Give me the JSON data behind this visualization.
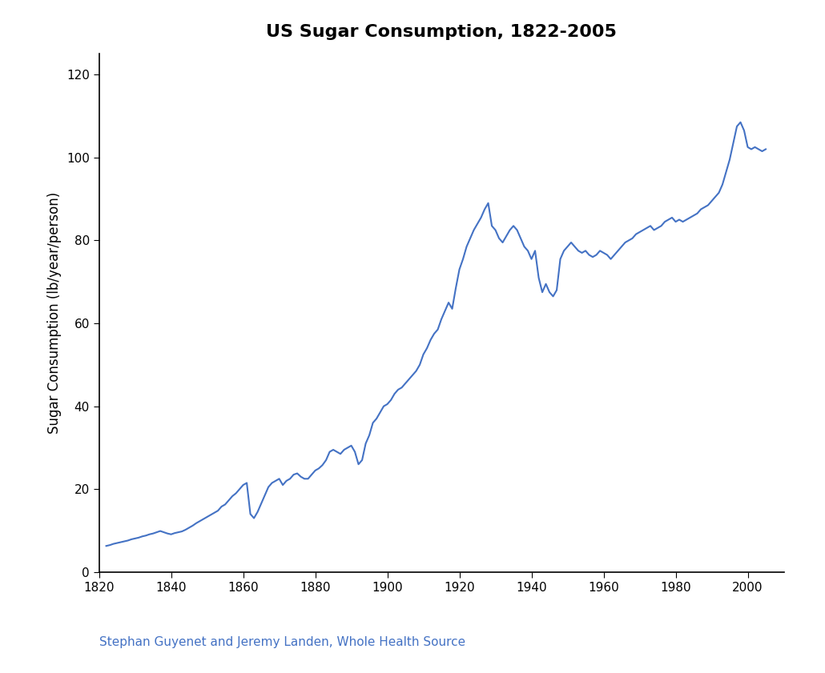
{
  "title": "US Sugar Consumption, 1822-2005",
  "xlabel": "",
  "ylabel": "Sugar Consumption (lb/year/person)",
  "line_color": "#4472C4",
  "line_width": 1.5,
  "background_color": "#ffffff",
  "xlim": [
    1820,
    2010
  ],
  "ylim": [
    0,
    125
  ],
  "xticks": [
    1820,
    1840,
    1860,
    1880,
    1900,
    1920,
    1940,
    1960,
    1980,
    2000
  ],
  "yticks": [
    0,
    20,
    40,
    60,
    80,
    100,
    120
  ],
  "title_fontsize": 16,
  "label_fontsize": 12,
  "tick_fontsize": 11,
  "citation_text": "Stephan Guyenet and Jeremy Landen, Whole Health Source",
  "citation_color": "#4472C4",
  "citation_fontsize": 11,
  "years": [
    1822,
    1823,
    1824,
    1825,
    1826,
    1827,
    1828,
    1829,
    1830,
    1831,
    1832,
    1833,
    1834,
    1835,
    1836,
    1837,
    1838,
    1839,
    1840,
    1841,
    1842,
    1843,
    1844,
    1845,
    1846,
    1847,
    1848,
    1849,
    1850,
    1851,
    1852,
    1853,
    1854,
    1855,
    1856,
    1857,
    1858,
    1859,
    1860,
    1861,
    1862,
    1863,
    1864,
    1865,
    1866,
    1867,
    1868,
    1869,
    1870,
    1871,
    1872,
    1873,
    1874,
    1875,
    1876,
    1877,
    1878,
    1879,
    1880,
    1881,
    1882,
    1883,
    1884,
    1885,
    1886,
    1887,
    1888,
    1889,
    1890,
    1891,
    1892,
    1893,
    1894,
    1895,
    1896,
    1897,
    1898,
    1899,
    1900,
    1901,
    1902,
    1903,
    1904,
    1905,
    1906,
    1907,
    1908,
    1909,
    1910,
    1911,
    1912,
    1913,
    1914,
    1915,
    1916,
    1917,
    1918,
    1919,
    1920,
    1921,
    1922,
    1923,
    1924,
    1925,
    1926,
    1927,
    1928,
    1929,
    1930,
    1931,
    1932,
    1933,
    1934,
    1935,
    1936,
    1937,
    1938,
    1939,
    1940,
    1941,
    1942,
    1943,
    1944,
    1945,
    1946,
    1947,
    1948,
    1949,
    1950,
    1951,
    1952,
    1953,
    1954,
    1955,
    1956,
    1957,
    1958,
    1959,
    1960,
    1961,
    1962,
    1963,
    1964,
    1965,
    1966,
    1967,
    1968,
    1969,
    1970,
    1971,
    1972,
    1973,
    1974,
    1975,
    1976,
    1977,
    1978,
    1979,
    1980,
    1981,
    1982,
    1983,
    1984,
    1985,
    1986,
    1987,
    1988,
    1989,
    1990,
    1991,
    1992,
    1993,
    1994,
    1995,
    1996,
    1997,
    1998,
    1999,
    2000,
    2001,
    2002,
    2003,
    2004,
    2005
  ],
  "values": [
    6.3,
    6.5,
    6.8,
    7.0,
    7.2,
    7.4,
    7.6,
    7.9,
    8.1,
    8.3,
    8.6,
    8.8,
    9.1,
    9.3,
    9.6,
    9.9,
    9.6,
    9.3,
    9.1,
    9.4,
    9.6,
    9.8,
    10.2,
    10.7,
    11.2,
    11.8,
    12.3,
    12.8,
    13.3,
    13.8,
    14.3,
    14.8,
    15.8,
    16.3,
    17.3,
    18.3,
    19.0,
    20.0,
    21.0,
    21.5,
    14.0,
    13.0,
    14.5,
    16.5,
    18.5,
    20.5,
    21.5,
    22.0,
    22.5,
    21.0,
    22.0,
    22.5,
    23.5,
    23.8,
    23.0,
    22.5,
    22.5,
    23.5,
    24.5,
    25.0,
    25.8,
    27.0,
    29.0,
    29.5,
    29.0,
    28.5,
    29.5,
    30.0,
    30.5,
    29.0,
    26.0,
    27.0,
    31.0,
    33.0,
    36.0,
    37.0,
    38.5,
    40.0,
    40.5,
    41.5,
    43.0,
    44.0,
    44.5,
    45.5,
    46.5,
    47.5,
    48.5,
    50.0,
    52.5,
    54.0,
    56.0,
    57.5,
    58.5,
    61.0,
    63.0,
    65.0,
    63.5,
    68.5,
    73.0,
    75.5,
    78.5,
    80.5,
    82.5,
    84.0,
    85.5,
    87.5,
    89.0,
    83.5,
    82.5,
    80.5,
    79.5,
    81.0,
    82.5,
    83.5,
    82.5,
    80.5,
    78.5,
    77.5,
    75.5,
    77.5,
    71.0,
    67.5,
    69.5,
    67.5,
    66.5,
    68.0,
    75.5,
    77.5,
    78.5,
    79.5,
    78.5,
    77.5,
    77.0,
    77.5,
    76.5,
    76.0,
    76.5,
    77.5,
    77.0,
    76.5,
    75.5,
    76.5,
    77.5,
    78.5,
    79.5,
    80.0,
    80.5,
    81.5,
    82.0,
    82.5,
    83.0,
    83.5,
    82.5,
    83.0,
    83.5,
    84.5,
    85.0,
    85.5,
    84.5,
    85.0,
    84.5,
    85.0,
    85.5,
    86.0,
    86.5,
    87.5,
    88.0,
    88.5,
    89.5,
    90.5,
    91.5,
    93.5,
    96.5,
    99.5,
    103.5,
    107.5,
    108.5,
    106.5,
    102.5,
    102.0,
    102.5,
    102.0,
    101.5,
    102.0
  ]
}
